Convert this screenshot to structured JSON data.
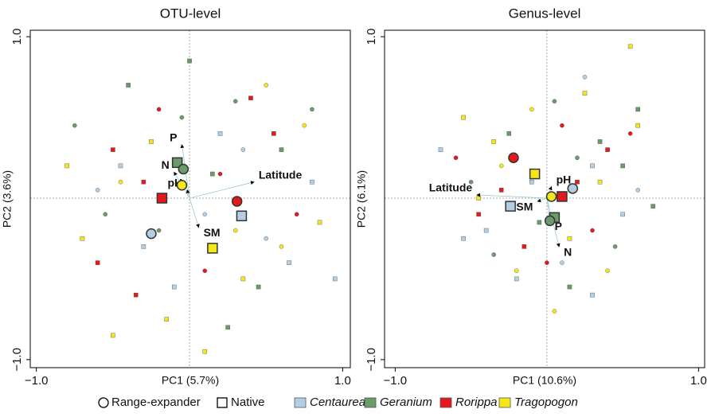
{
  "chart_data": [
    {
      "type": "scatter",
      "title": "OTU-level",
      "xlabel": "PC1 (5.7%)",
      "ylabel": "PC2 (3.6%)",
      "xlim": [
        -1.04,
        1.05
      ],
      "ylim": [
        -1.05,
        1.04
      ],
      "xticks": [
        {
          "value": -1,
          "label": "−1.0"
        },
        {
          "value": 1,
          "label": "1.0"
        }
      ],
      "yticks": [
        {
          "value": -1,
          "label": "−1.0"
        },
        {
          "value": 1,
          "label": "1.0"
        }
      ],
      "series": [
        {
          "name": "Centaurea",
          "color": "#b3cde3",
          "x": [
            -0.6,
            -0.3,
            0.2,
            0.5,
            0.8,
            -0.1,
            0.35,
            -0.45,
            0.65,
            0.1,
            0.95
          ],
          "y": [
            0.05,
            -0.3,
            0.4,
            -0.25,
            0.1,
            -0.55,
            0.3,
            0.2,
            -0.4,
            -0.1,
            -0.5
          ],
          "marker": [
            "o",
            "s",
            "s",
            "o",
            "s",
            "s",
            "o",
            "s",
            "s",
            "o",
            "s"
          ]
        },
        {
          "name": "Geranium",
          "color": "#6b9a6b",
          "x": [
            -0.75,
            -0.4,
            0.0,
            0.3,
            0.6,
            -0.2,
            0.45,
            -0.55,
            0.15,
            0.8,
            0.25,
            -0.05
          ],
          "y": [
            0.45,
            0.7,
            0.85,
            0.6,
            0.3,
            -0.2,
            -0.55,
            -0.1,
            0.15,
            0.55,
            -0.8,
            0.5
          ],
          "marker": [
            "o",
            "s",
            "s",
            "o",
            "s",
            "o",
            "s",
            "o",
            "s",
            "o",
            "s",
            "o"
          ]
        },
        {
          "name": "Rorippa",
          "color": "#e3191c",
          "x": [
            -0.5,
            -0.2,
            0.4,
            0.7,
            -0.6,
            0.1,
            0.55,
            -0.35,
            0.2,
            -0.3
          ],
          "y": [
            0.3,
            0.55,
            0.62,
            -0.1,
            -0.4,
            -0.45,
            0.4,
            -0.6,
            0.15,
            0.1
          ],
          "marker": [
            "s",
            "o",
            "s",
            "o",
            "s",
            "o",
            "s",
            "s",
            "o",
            "s"
          ]
        },
        {
          "name": "Tragopogon",
          "color": "#f5e61a",
          "x": [
            -0.7,
            -0.45,
            -0.15,
            0.35,
            0.6,
            0.85,
            -0.8,
            0.5,
            -0.25,
            0.1,
            0.75,
            -0.5,
            0.3
          ],
          "y": [
            -0.25,
            0.1,
            -0.75,
            -0.5,
            -0.3,
            -0.15,
            0.2,
            0.7,
            0.35,
            -0.95,
            0.45,
            -0.85,
            -0.2
          ],
          "marker": [
            "s",
            "o",
            "s",
            "s",
            "o",
            "s",
            "s",
            "o",
            "s",
            "s",
            "o",
            "s",
            "o"
          ]
        }
      ],
      "centroids": {
        "series": [
          1,
          1,
          3,
          2,
          2,
          0,
          0,
          3
        ],
        "marker": [
          "s",
          "o",
          "o",
          "s",
          "o",
          "s",
          "o",
          "s"
        ],
        "x": [
          -0.08,
          -0.04,
          -0.05,
          -0.18,
          0.31,
          0.34,
          -0.25,
          0.15
        ],
        "y": [
          0.22,
          0.18,
          0.08,
          0.0,
          -0.02,
          -0.11,
          -0.22,
          -0.31
        ]
      },
      "vectors": {
        "labels": [
          "P",
          "N",
          "pH",
          "SM",
          "Latitude"
        ],
        "x": [
          -0.05,
          -0.1,
          -0.015,
          0.06,
          0.42
        ],
        "y": [
          0.33,
          0.16,
          0.05,
          -0.18,
          0.1
        ]
      }
    },
    {
      "type": "scatter",
      "title": "Genus-level",
      "xlabel": "PC1 (10.6%)",
      "ylabel": "PC2 (6.1%)",
      "xlim": [
        -1.07,
        1.04
      ],
      "ylim": [
        -1.05,
        1.04
      ],
      "xticks": [
        {
          "value": -1,
          "label": "−1.0"
        },
        {
          "value": 1,
          "label": "1.0"
        }
      ],
      "yticks": [
        {
          "value": -1,
          "label": "−1.0"
        },
        {
          "value": 1,
          "label": "1.0"
        }
      ],
      "series": [
        {
          "name": "Centaurea",
          "color": "#b3cde3",
          "x": [
            -0.7,
            -0.4,
            -0.2,
            0.1,
            0.3,
            0.5,
            -0.55,
            0.25,
            -0.1,
            0.6,
            0.3
          ],
          "y": [
            0.3,
            -0.2,
            -0.5,
            -0.4,
            0.2,
            -0.1,
            -0.25,
            0.75,
            0.1,
            0.05,
            -0.6
          ],
          "marker": [
            "s",
            "s",
            "s",
            "o",
            "s",
            "s",
            "s",
            "o",
            "s",
            "o",
            "s"
          ]
        },
        {
          "name": "Geranium",
          "color": "#6b9a6b",
          "x": [
            -0.5,
            -0.25,
            0.05,
            0.35,
            0.6,
            0.7,
            -0.35,
            0.15,
            0.45,
            -0.05,
            0.2,
            0.5
          ],
          "y": [
            0.1,
            0.4,
            0.6,
            0.35,
            0.55,
            -0.05,
            -0.35,
            -0.55,
            -0.3,
            -0.15,
            0.25,
            0.2
          ],
          "marker": [
            "o",
            "s",
            "o",
            "s",
            "s",
            "s",
            "o",
            "s",
            "o",
            "s",
            "o",
            "s"
          ]
        },
        {
          "name": "Rorippa",
          "color": "#e3191c",
          "x": [
            -0.6,
            -0.3,
            0.1,
            0.4,
            0.55,
            -0.15,
            0.3,
            -0.45,
            0.0,
            0.2
          ],
          "y": [
            0.25,
            0.05,
            0.45,
            0.3,
            0.4,
            -0.3,
            -0.2,
            -0.1,
            -0.4,
            0.1
          ],
          "marker": [
            "o",
            "s",
            "o",
            "s",
            "o",
            "s",
            "o",
            "s",
            "o",
            "s"
          ]
        },
        {
          "name": "Tragopogon",
          "color": "#f5e61a",
          "x": [
            -0.55,
            -0.35,
            -0.1,
            0.15,
            0.4,
            0.6,
            0.55,
            -0.2,
            0.25,
            -0.45,
            0.05,
            0.35,
            -0.3
          ],
          "y": [
            0.5,
            0.35,
            0.55,
            -0.25,
            -0.45,
            0.45,
            0.94,
            -0.45,
            0.65,
            0.0,
            -0.7,
            0.1,
            0.2
          ],
          "marker": [
            "s",
            "s",
            "o",
            "s",
            "o",
            "s",
            "s",
            "o",
            "s",
            "s",
            "o",
            "s",
            "o"
          ]
        }
      ],
      "centroids": {
        "series": [
          2,
          3,
          0,
          3,
          2,
          0,
          1,
          1
        ],
        "marker": [
          "o",
          "s",
          "o",
          "o",
          "s",
          "s",
          "s",
          "o"
        ],
        "x": [
          -0.22,
          -0.08,
          0.17,
          0.03,
          0.1,
          -0.24,
          0.05,
          0.02
        ],
        "y": [
          0.25,
          0.15,
          0.06,
          0.01,
          0.01,
          -0.05,
          -0.12,
          -0.14
        ]
      },
      "vectors": {
        "labels": [
          "Latitude",
          "pH",
          "SM",
          "P",
          "N"
        ],
        "x": [
          -0.46,
          0.03,
          -0.06,
          0.02,
          0.08
        ],
        "y": [
          0.02,
          0.07,
          -0.02,
          -0.14,
          -0.3
        ]
      }
    }
  ],
  "shape_legend": [
    "Range-expander",
    "Native"
  ]
}
